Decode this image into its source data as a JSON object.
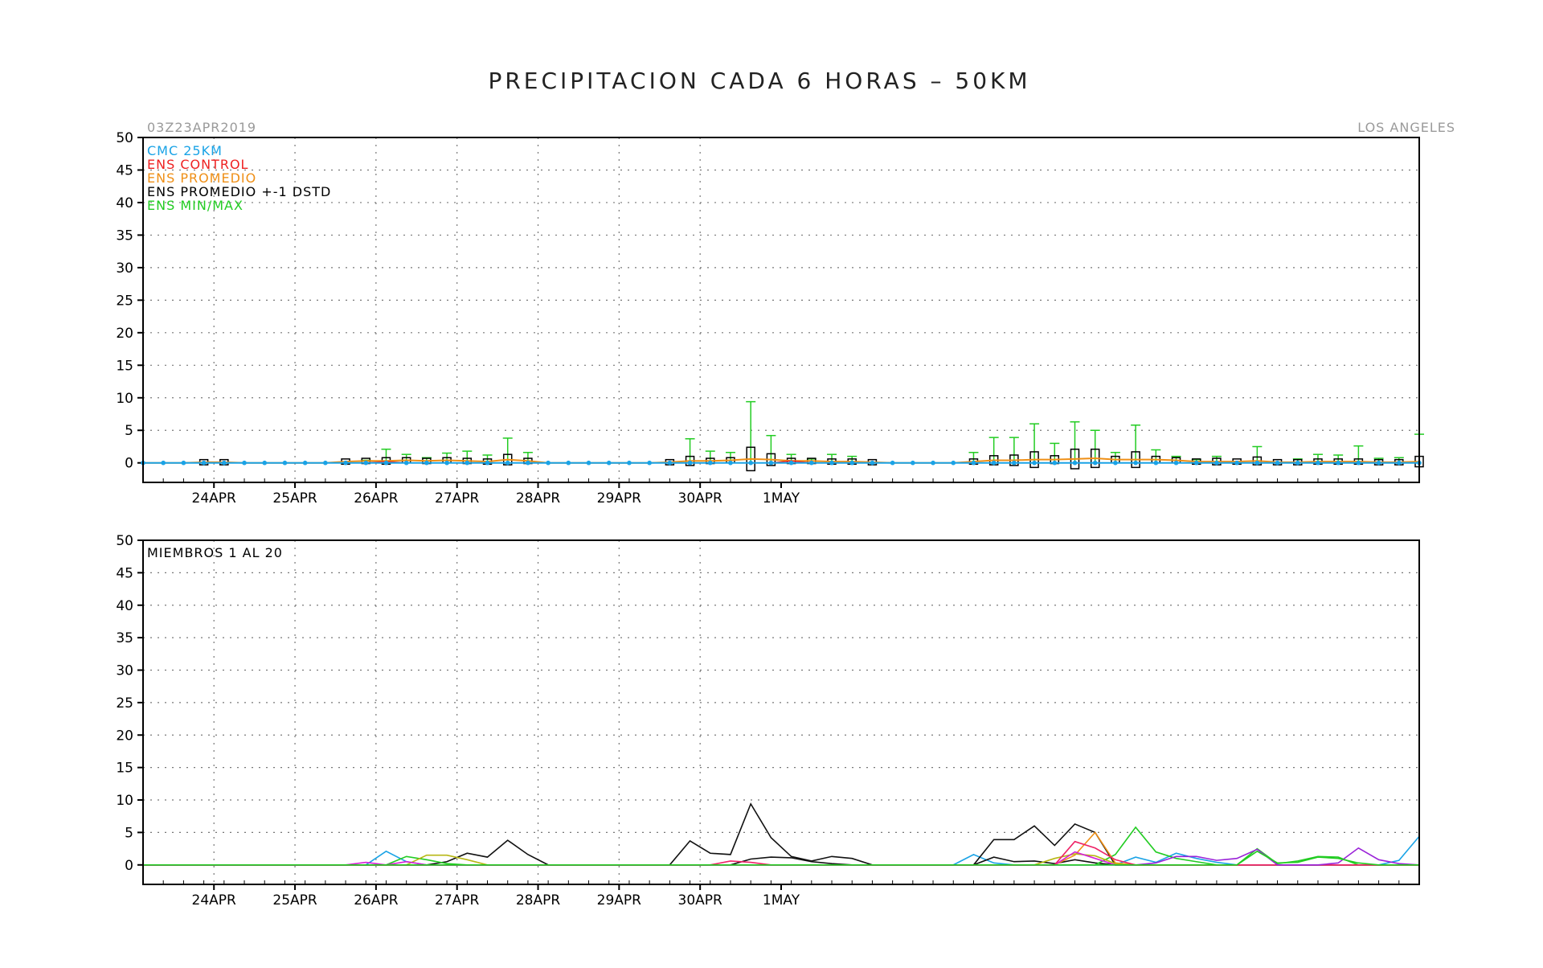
{
  "title": "PRECIPITACION CADA 6 HORAS – 50KM",
  "init_time": "03Z23APR2019",
  "location": "LOS ANGELES",
  "colors": {
    "cmc": "#1aa3e6",
    "control": "#ee2222",
    "promedio": "#ef8f16",
    "box": "#000000",
    "minmax": "#22cc22",
    "members": [
      "#1aa3e6",
      "#111111",
      "#22cc22",
      "#ef8f16",
      "#b7b714",
      "#d620d6",
      "#ee2266",
      "#9a22d8",
      "#118833",
      "#dd5500"
    ]
  },
  "chart_data": [
    {
      "type": "box-ensemble",
      "panel": "top",
      "ylim": [
        -3,
        50
      ],
      "yticks": [
        0,
        5,
        10,
        15,
        20,
        25,
        30,
        35,
        40,
        45,
        50
      ],
      "xticks": [
        "24APR",
        "25APR",
        "26APR",
        "27APR",
        "28APR",
        "29APR",
        "30APR",
        "1MAY"
      ],
      "time_step_hours": 6,
      "legend": [
        "CMC 25KM",
        "ENS CONTROL",
        "ENS PROMEDIO",
        "ENS PROMEDIO +-1 DSTD",
        "ENS MIN/MAX"
      ],
      "times_hours": [
        0,
        6,
        12,
        18,
        24,
        30,
        36,
        42,
        48,
        54,
        60,
        66,
        72,
        78,
        84,
        90,
        96,
        102,
        108,
        114,
        120,
        126,
        132,
        138,
        144,
        150,
        156,
        162,
        168,
        174,
        180,
        186,
        192,
        198,
        204,
        210,
        216,
        222,
        228,
        234,
        240,
        246,
        252,
        258,
        264,
        270,
        276,
        282,
        288,
        294,
        300,
        306,
        312,
        318,
        324,
        330,
        336,
        342,
        348,
        354,
        360,
        366,
        372,
        378
      ],
      "cmc": [
        0,
        0,
        0,
        0,
        0,
        0,
        0,
        0,
        0,
        0,
        0,
        0,
        0,
        0,
        0,
        0,
        0,
        0,
        0,
        0,
        0,
        0,
        0,
        0,
        0,
        0,
        0,
        0,
        0,
        0,
        0,
        0,
        0,
        0,
        0,
        0,
        0,
        0,
        0,
        0,
        0,
        0,
        0,
        0,
        0,
        0,
        0,
        0,
        0,
        0,
        0,
        0,
        0,
        0,
        0,
        0,
        0,
        0,
        0,
        0,
        0,
        0,
        0,
        0
      ],
      "control": [
        0,
        0,
        0,
        0,
        0,
        0,
        0,
        0,
        0,
        0,
        0,
        0,
        0.2,
        0,
        0,
        0,
        0,
        0,
        0,
        0,
        0,
        0,
        0,
        0,
        0,
        0,
        0,
        0,
        0,
        0,
        0,
        0,
        0.3,
        0,
        0,
        0,
        0,
        0,
        0,
        0,
        0,
        0,
        0,
        0,
        0,
        0,
        0,
        0,
        0,
        0,
        0,
        0,
        0,
        0,
        0,
        0,
        0,
        0,
        0,
        0,
        0,
        0,
        0,
        0
      ],
      "mean": [
        0,
        0,
        0,
        0.1,
        0.1,
        0,
        0,
        0,
        0,
        0,
        0.2,
        0.3,
        0.3,
        0.4,
        0.3,
        0.4,
        0.3,
        0.2,
        0.5,
        0.3,
        0,
        0,
        0,
        0,
        0,
        0,
        0.1,
        0.3,
        0.3,
        0.4,
        0.6,
        0.5,
        0.3,
        0.3,
        0.2,
        0.2,
        0.1,
        0,
        0,
        0,
        0,
        0.2,
        0.4,
        0.4,
        0.5,
        0.5,
        0.6,
        0.7,
        0.5,
        0.5,
        0.5,
        0.4,
        0.2,
        0.2,
        0.2,
        0.3,
        0.1,
        0.1,
        0.2,
        0.2,
        0.2,
        0.1,
        0.1,
        0.2
      ],
      "std": [
        0,
        0,
        0,
        0,
        0,
        0,
        0,
        0,
        0,
        0,
        0,
        0,
        0.5,
        0.3,
        0.2,
        0.4,
        0.4,
        0.3,
        0.8,
        0.4,
        0,
        0,
        0,
        0,
        0,
        0,
        0,
        0.7,
        0.4,
        0.4,
        1.8,
        0.9,
        0.3,
        0.2,
        0.3,
        0.3,
        0,
        0,
        0,
        0,
        0,
        0.3,
        0.7,
        0.8,
        1.2,
        0.6,
        1.5,
        1.4,
        0.5,
        1.2,
        0.5,
        0.2,
        0.1,
        0.5,
        0,
        0.6,
        0,
        0.1,
        0.1,
        0.4,
        0.2,
        0.1,
        0,
        0.8
      ],
      "max": [
        0,
        0,
        0,
        0,
        0,
        0,
        0,
        0,
        0,
        0,
        0,
        0.4,
        2.1,
        1.3,
        0.8,
        1.5,
        1.8,
        1.2,
        3.8,
        1.6,
        0,
        0,
        0,
        0,
        0,
        0,
        0,
        3.7,
        1.8,
        1.6,
        9.4,
        4.2,
        1.3,
        0.6,
        1.3,
        1.0,
        0,
        0,
        0,
        0,
        0,
        1.6,
        3.9,
        3.9,
        6.0,
        3.0,
        6.3,
        5.0,
        1.6,
        5.8,
        2.0,
        1.0,
        0.5,
        1.0,
        0.2,
        2.5,
        0.2,
        0.6,
        1.3,
        1.2,
        2.6,
        0.7,
        0.8,
        4.4
      ],
      "min": [
        0,
        0,
        0,
        0,
        0,
        0,
        0,
        0,
        0,
        0,
        0,
        0,
        0,
        0,
        0,
        0,
        0,
        0,
        0,
        0,
        0,
        0,
        0,
        0,
        0,
        0,
        0,
        0,
        0,
        0,
        0,
        0,
        0,
        0,
        0,
        0,
        0,
        0,
        0,
        0,
        0,
        0,
        0,
        0,
        0,
        0,
        0,
        0,
        0,
        0,
        0,
        0,
        0,
        0,
        0,
        0,
        0,
        0,
        0,
        0,
        0,
        0,
        0,
        0
      ]
    },
    {
      "type": "line",
      "panel": "bottom",
      "annotation": "MIEMBROS 1 AL 20",
      "ylim": [
        -3,
        50
      ],
      "yticks": [
        0,
        5,
        10,
        15,
        20,
        25,
        30,
        35,
        40,
        45,
        50
      ],
      "xticks": [
        "24APR",
        "25APR",
        "26APR",
        "27APR",
        "28APR",
        "29APR",
        "30APR",
        "1MAY"
      ],
      "times_hours": [
        0,
        6,
        12,
        18,
        24,
        30,
        36,
        42,
        48,
        54,
        60,
        66,
        72,
        78,
        84,
        90,
        96,
        102,
        108,
        114,
        120,
        126,
        132,
        138,
        144,
        150,
        156,
        162,
        168,
        174,
        180,
        186,
        192,
        198,
        204,
        210,
        216,
        222,
        228,
        234,
        240,
        246,
        252,
        258,
        264,
        270,
        276,
        282,
        288,
        294,
        300,
        306,
        312,
        318,
        324,
        330,
        336,
        342,
        348,
        354,
        360,
        366,
        372,
        378
      ],
      "series": [
        {
          "color_idx": 0,
          "values": [
            0,
            0,
            0,
            0,
            0,
            0,
            0,
            0,
            0,
            0,
            0,
            0,
            2.1,
            0.5,
            0,
            0,
            0,
            0,
            0,
            0,
            0,
            0,
            0,
            0,
            0,
            0,
            0,
            0,
            0,
            0,
            0,
            0,
            0,
            0,
            0,
            0,
            0,
            0,
            0,
            0,
            0,
            1.6,
            0.3,
            0,
            0,
            0,
            0,
            0,
            0,
            1.2,
            0.4,
            1.8,
            1.0,
            0.4,
            0,
            0,
            0,
            0,
            0,
            0,
            0,
            0,
            0.7,
            4.4
          ]
        },
        {
          "color_idx": 1,
          "values": [
            0,
            0,
            0,
            0,
            0,
            0,
            0,
            0,
            0,
            0,
            0,
            0,
            0,
            0,
            0,
            0.5,
            1.8,
            1.2,
            3.8,
            1.6,
            0,
            0,
            0,
            0,
            0,
            0,
            0,
            3.7,
            1.8,
            1.6,
            9.4,
            4.2,
            1.3,
            0.6,
            1.3,
            1.0,
            0,
            0,
            0,
            0,
            0,
            0,
            3.9,
            3.9,
            6.0,
            3.0,
            6.3,
            5.0,
            0,
            0,
            0,
            0,
            0,
            0,
            0,
            0,
            0,
            0,
            0,
            0,
            0,
            0,
            0,
            0
          ]
        },
        {
          "color_idx": 1,
          "values": [
            0,
            0,
            0,
            0,
            0,
            0,
            0,
            0,
            0,
            0,
            0,
            0,
            0,
            0,
            0,
            0,
            0,
            0,
            0,
            0,
            0,
            0,
            0,
            0,
            0,
            0,
            0,
            0,
            0,
            0,
            0.9,
            1.2,
            1.1,
            0.5,
            0.2,
            0,
            0,
            0,
            0,
            0,
            0,
            0,
            1.2,
            0.5,
            0.6,
            0.2,
            0.8,
            0.3,
            0,
            0,
            0,
            0,
            0,
            0,
            0,
            0,
            0,
            0,
            0,
            0,
            0,
            0,
            0,
            0
          ]
        },
        {
          "color_idx": 2,
          "values": [
            0,
            0,
            0,
            0,
            0,
            0,
            0,
            0,
            0,
            0,
            0,
            0,
            0,
            1.3,
            0.8,
            0.2,
            0,
            0,
            0,
            0,
            0,
            0,
            0,
            0,
            0,
            0,
            0,
            0,
            0,
            0,
            0,
            0,
            0,
            0,
            0,
            0,
            0,
            0,
            0,
            0,
            0,
            0,
            0,
            0,
            0,
            0,
            0,
            0,
            1.6,
            5.8,
            2.0,
            1.0,
            0.5,
            0,
            0,
            2.5,
            0.2,
            0.6,
            1.3,
            1.2,
            0,
            0,
            0,
            0
          ]
        },
        {
          "color_idx": 3,
          "values": [
            0,
            0,
            0,
            0,
            0,
            0,
            0,
            0,
            0,
            0,
            0,
            0,
            0,
            0,
            0,
            0,
            0,
            0,
            0,
            0,
            0,
            0,
            0,
            0,
            0,
            0,
            0,
            0,
            0,
            0,
            0,
            0,
            0,
            0,
            0,
            0,
            0,
            0,
            0,
            0,
            0,
            0,
            0,
            0,
            0,
            0,
            1.5,
            5.0,
            0.3,
            0,
            0,
            0,
            0,
            0,
            0,
            0,
            0,
            0,
            0,
            0,
            0,
            0,
            0,
            0
          ]
        },
        {
          "color_idx": 4,
          "values": [
            0,
            0,
            0,
            0,
            0,
            0,
            0,
            0,
            0,
            0,
            0,
            0,
            0,
            0,
            1.5,
            1.5,
            0.8,
            0,
            0,
            0,
            0,
            0,
            0,
            0,
            0,
            0,
            0,
            0,
            0,
            0,
            0,
            0,
            0,
            0,
            0,
            0,
            0,
            0,
            0,
            0,
            0,
            0,
            0,
            0,
            0,
            1.0,
            1.7,
            1.4,
            0.2,
            0,
            0,
            0,
            0,
            0,
            0,
            0,
            0,
            0,
            0,
            0,
            0,
            0,
            0,
            0
          ]
        },
        {
          "color_idx": 5,
          "values": [
            0,
            0,
            0,
            0,
            0,
            0,
            0,
            0,
            0,
            0,
            0,
            0.4,
            0,
            0.5,
            0,
            0,
            0,
            0,
            0,
            0,
            0,
            0,
            0,
            0,
            0,
            0,
            0,
            0,
            0,
            0,
            0,
            0,
            0,
            0,
            0,
            0,
            0,
            0,
            0,
            0,
            0,
            0,
            0,
            0,
            0,
            0,
            2.0,
            1.0,
            0,
            0,
            0,
            0,
            0,
            0,
            0,
            0,
            0,
            0,
            0,
            0,
            0,
            0,
            0,
            0
          ]
        },
        {
          "color_idx": 6,
          "values": [
            0,
            0,
            0,
            0,
            0,
            0,
            0,
            0,
            0,
            0,
            0,
            0,
            0,
            0,
            0,
            0,
            0,
            0,
            0,
            0,
            0,
            0,
            0,
            0,
            0,
            0,
            0,
            0,
            0,
            0.6,
            0.4,
            0,
            0,
            0,
            0,
            0,
            0,
            0,
            0,
            0,
            0,
            0,
            0,
            0,
            0,
            0,
            3.6,
            2.6,
            0.8,
            0,
            0,
            0,
            0,
            0,
            0,
            0,
            0,
            0,
            0,
            0,
            0,
            0,
            0,
            0
          ]
        },
        {
          "color_idx": 7,
          "values": [
            0,
            0,
            0,
            0,
            0,
            0,
            0,
            0,
            0,
            0,
            0,
            0,
            0,
            0,
            0,
            0,
            0,
            0,
            0,
            0,
            0,
            0,
            0,
            0,
            0,
            0,
            0,
            0,
            0,
            0,
            0,
            0,
            0,
            0,
            0,
            0,
            0,
            0,
            0,
            0,
            0,
            0,
            0,
            0,
            0,
            0,
            0,
            0,
            0,
            0,
            0.3,
            1.3,
            1.3,
            0.7,
            1.0,
            2.4,
            0,
            0,
            0,
            0.3,
            2.6,
            0.8,
            0.2,
            0
          ]
        },
        {
          "color_idx": 2,
          "values": [
            0,
            0,
            0,
            0,
            0,
            0,
            0,
            0,
            0,
            0,
            0,
            0,
            0,
            0,
            0,
            0,
            0,
            0,
            0,
            0,
            0,
            0,
            0,
            0,
            0,
            0,
            0,
            0,
            0,
            0,
            0,
            0,
            0,
            0,
            0,
            0,
            0,
            0,
            0,
            0,
            0,
            0,
            0,
            0,
            0,
            0,
            0,
            0,
            0,
            0,
            0,
            0,
            0,
            0,
            0,
            2.1,
            0.3,
            0.4,
            1.2,
            1.0,
            0.3,
            0,
            0,
            0
          ]
        }
      ]
    }
  ]
}
